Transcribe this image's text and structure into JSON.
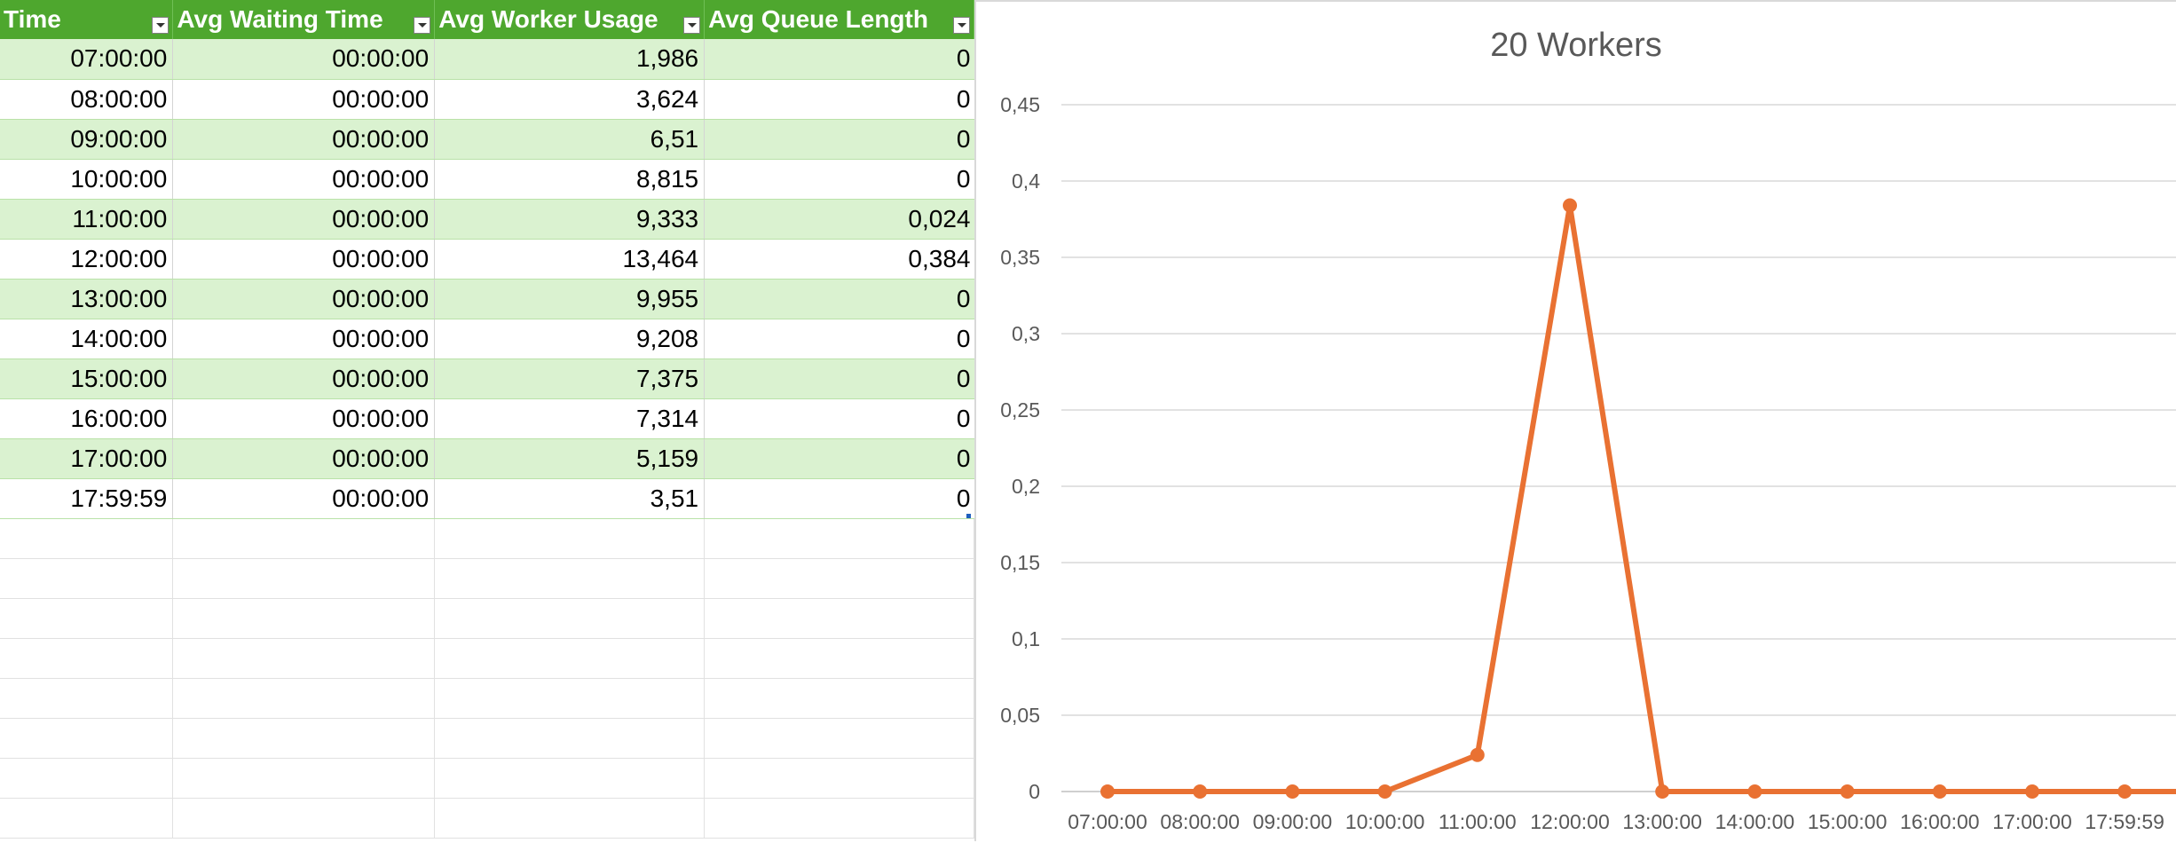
{
  "table": {
    "headers": [
      "Time",
      "Avg Waiting Time",
      "Avg Worker Usage",
      "Avg Queue Length"
    ],
    "rows": [
      [
        "07:00:00",
        "00:00:00",
        "1,986",
        "0"
      ],
      [
        "08:00:00",
        "00:00:00",
        "3,624",
        "0"
      ],
      [
        "09:00:00",
        "00:00:00",
        "6,51",
        "0"
      ],
      [
        "10:00:00",
        "00:00:00",
        "8,815",
        "0"
      ],
      [
        "11:00:00",
        "00:00:00",
        "9,333",
        "0,024"
      ],
      [
        "12:00:00",
        "00:00:00",
        "13,464",
        "0,384"
      ],
      [
        "13:00:00",
        "00:00:00",
        "9,955",
        "0"
      ],
      [
        "14:00:00",
        "00:00:00",
        "9,208",
        "0"
      ],
      [
        "15:00:00",
        "00:00:00",
        "7,375",
        "0"
      ],
      [
        "16:00:00",
        "00:00:00",
        "7,314",
        "0"
      ],
      [
        "17:00:00",
        "00:00:00",
        "5,159",
        "0"
      ],
      [
        "17:59:59",
        "00:00:00",
        "3,51",
        "0"
      ]
    ]
  },
  "colors": {
    "header_bg": "#4ea72e",
    "band_bg": "#daf2d0",
    "series_line": "#e97132"
  },
  "chart_data": {
    "type": "line",
    "title": "20 Workers",
    "categories": [
      "07:00:00",
      "08:00:00",
      "09:00:00",
      "10:00:00",
      "11:00:00",
      "12:00:00",
      "13:00:00",
      "14:00:00",
      "15:00:00",
      "16:00:00",
      "17:00:00",
      "17:59:59"
    ],
    "series": [
      {
        "values": [
          0,
          0,
          0,
          0,
          0.024,
          0.384,
          0,
          0,
          0,
          0,
          0,
          0
        ]
      }
    ],
    "ylim": [
      0,
      0.45
    ],
    "yticks": [
      {
        "value": 0,
        "label": "0"
      },
      {
        "value": 0.05,
        "label": "0,05"
      },
      {
        "value": 0.1,
        "label": "0,1"
      },
      {
        "value": 0.15,
        "label": "0,15"
      },
      {
        "value": 0.2,
        "label": "0,2"
      },
      {
        "value": 0.25,
        "label": "0,25"
      },
      {
        "value": 0.3,
        "label": "0,3"
      },
      {
        "value": 0.35,
        "label": "0,35"
      },
      {
        "value": 0.4,
        "label": "0,4"
      },
      {
        "value": 0.45,
        "label": "0,45"
      }
    ],
    "grid": true,
    "legend": "none",
    "markers": true
  }
}
